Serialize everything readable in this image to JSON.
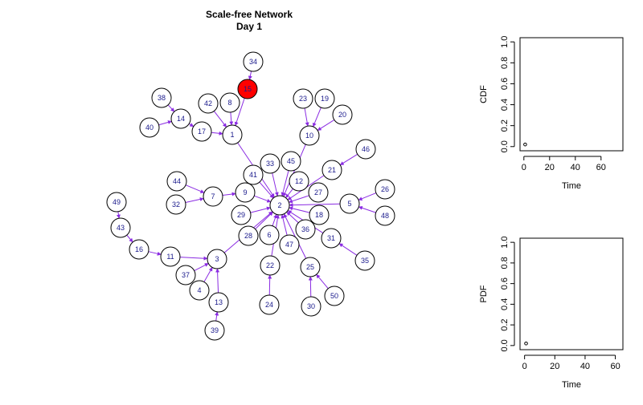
{
  "title": "Scale-free Network",
  "subtitle": "Day 1",
  "colors": {
    "edge": "#8a2be2",
    "node_fill": "#ffffff",
    "infected_fill": "#ff0000",
    "node_label": "#1a1a8c"
  },
  "network": {
    "infected": [
      "15"
    ],
    "nodes": [
      "1",
      "2",
      "3",
      "4",
      "5",
      "6",
      "7",
      "8",
      "9",
      "10",
      "11",
      "12",
      "13",
      "14",
      "15",
      "16",
      "17",
      "18",
      "19",
      "20",
      "21",
      "22",
      "23",
      "24",
      "25",
      "26",
      "27",
      "28",
      "29",
      "30",
      "31",
      "32",
      "33",
      "34",
      "35",
      "36",
      "37",
      "38",
      "39",
      "40",
      "41",
      "42",
      "43",
      "44",
      "45",
      "46",
      "47",
      "48",
      "49",
      "50"
    ],
    "edges": [
      [
        "34",
        "15"
      ],
      [
        "15",
        "1"
      ],
      [
        "8",
        "1"
      ],
      [
        "42",
        "1"
      ],
      [
        "17",
        "1"
      ],
      [
        "14",
        "17"
      ],
      [
        "38",
        "14"
      ],
      [
        "40",
        "14"
      ],
      [
        "1",
        "2"
      ],
      [
        "23",
        "10"
      ],
      [
        "19",
        "10"
      ],
      [
        "20",
        "10"
      ],
      [
        "10",
        "2"
      ],
      [
        "45",
        "2"
      ],
      [
        "33",
        "2"
      ],
      [
        "41",
        "2"
      ],
      [
        "12",
        "2"
      ],
      [
        "21",
        "2"
      ],
      [
        "46",
        "21"
      ],
      [
        "27",
        "2"
      ],
      [
        "5",
        "2"
      ],
      [
        "26",
        "5"
      ],
      [
        "48",
        "5"
      ],
      [
        "18",
        "2"
      ],
      [
        "31",
        "2"
      ],
      [
        "35",
        "31"
      ],
      [
        "36",
        "2"
      ],
      [
        "9",
        "2"
      ],
      [
        "7",
        "9"
      ],
      [
        "44",
        "7"
      ],
      [
        "32",
        "7"
      ],
      [
        "29",
        "2"
      ],
      [
        "28",
        "2"
      ],
      [
        "6",
        "2"
      ],
      [
        "47",
        "2"
      ],
      [
        "22",
        "2"
      ],
      [
        "24",
        "22"
      ],
      [
        "25",
        "2"
      ],
      [
        "30",
        "25"
      ],
      [
        "50",
        "25"
      ],
      [
        "3",
        "2"
      ],
      [
        "11",
        "3"
      ],
      [
        "16",
        "11"
      ],
      [
        "43",
        "16"
      ],
      [
        "49",
        "43"
      ],
      [
        "37",
        "3"
      ],
      [
        "4",
        "3"
      ],
      [
        "13",
        "3"
      ],
      [
        "39",
        "13"
      ]
    ]
  },
  "chart_data": [
    {
      "type": "scatter",
      "title": "",
      "xlabel": "Time",
      "ylabel": "CDF",
      "xlim": [
        -3,
        77
      ],
      "ylim": [
        -0.04,
        1.04
      ],
      "xticks": [
        "0",
        "20",
        "40",
        "60"
      ],
      "yticks": [
        "0.0",
        "0.2",
        "0.4",
        "0.6",
        "0.8",
        "1.0"
      ],
      "x": [
        1
      ],
      "y": [
        0.02
      ]
    },
    {
      "type": "scatter",
      "title": "",
      "xlabel": "Time",
      "ylabel": "PDF",
      "xlim": [
        -3,
        65
      ],
      "ylim": [
        -0.04,
        1.04
      ],
      "xticks": [
        "0",
        "20",
        "40",
        "60"
      ],
      "yticks": [
        "0.0",
        "0.2",
        "0.4",
        "0.6",
        "0.8",
        "1.0"
      ],
      "x": [
        1
      ],
      "y": [
        0.02
      ]
    }
  ]
}
